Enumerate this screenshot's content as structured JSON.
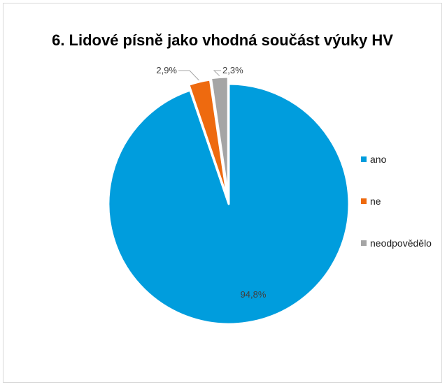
{
  "chart_data": {
    "type": "pie",
    "title": "6. Lidové písně jako vhodná součást výuky HV",
    "categories": [
      "ano",
      "ne",
      "neodpovědělo"
    ],
    "values": [
      94.8,
      2.9,
      2.3
    ],
    "data_labels": [
      "94,8%",
      "2,9%",
      "2,3%"
    ],
    "colors": [
      "#009ddd",
      "#ee6a0f",
      "#a5a5a5"
    ],
    "slices_exploded": true,
    "legend_position": "right"
  }
}
